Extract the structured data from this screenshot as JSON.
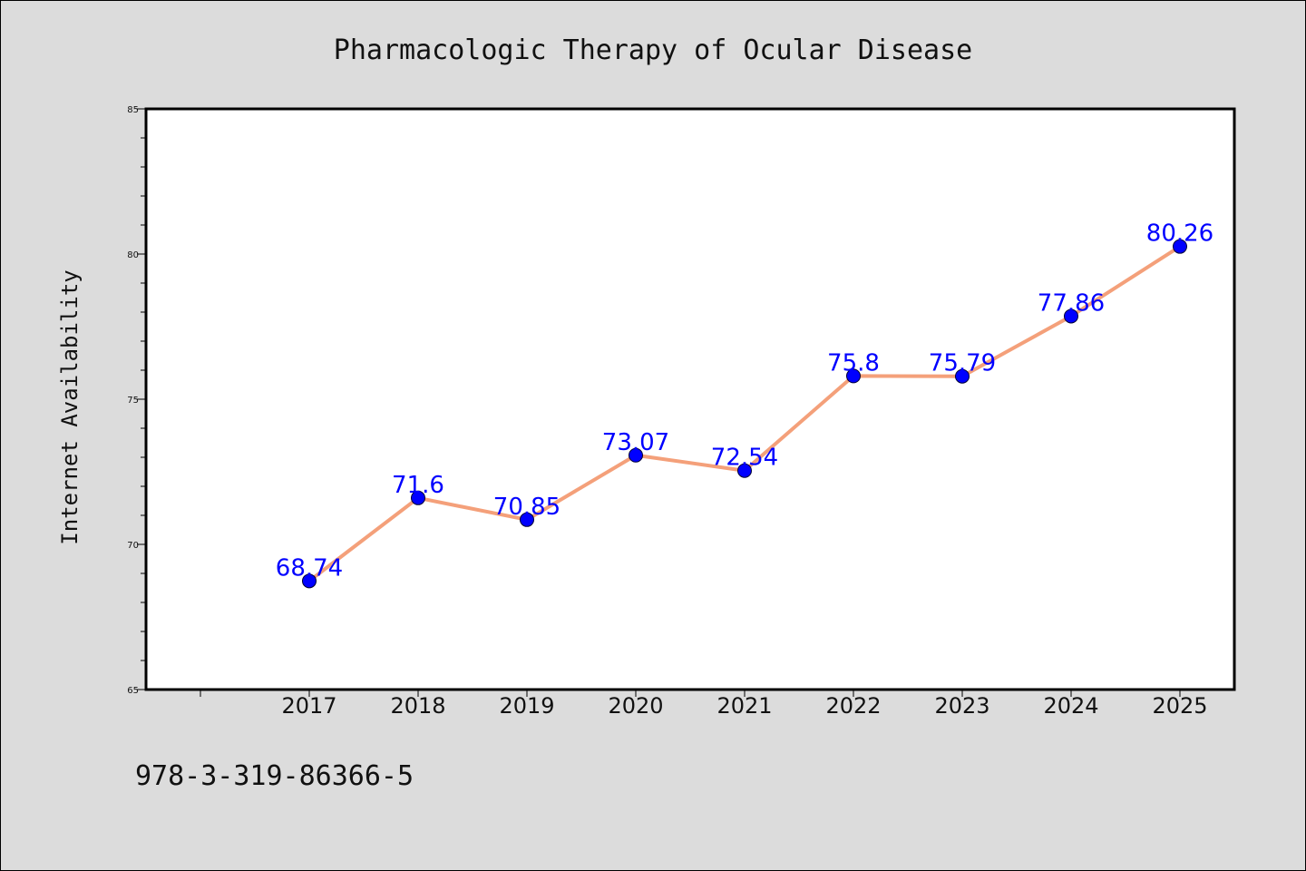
{
  "chart_data": {
    "type": "line",
    "title": "Pharmacologic Therapy of Ocular Disease",
    "xlabel": "",
    "ylabel": "Internet Availability",
    "categories": [
      "2017",
      "2018",
      "2019",
      "2020",
      "2021",
      "2022",
      "2023",
      "2024",
      "2025"
    ],
    "series": [
      {
        "values": [
          68.74,
          71.6,
          70.85,
          73.07,
          72.54,
          75.8,
          75.79,
          77.86,
          80.26
        ],
        "data_labels": [
          "68.74",
          "71.6",
          "70.85",
          "73.07",
          "72.54",
          "75.8",
          "75.79",
          "77.86",
          "80.26"
        ],
        "line_color": "#f4a07a",
        "marker_color": "#0000ff"
      }
    ],
    "ylim": [
      65,
      85
    ],
    "yticks": [
      "65",
      "70",
      "75",
      "80",
      "85"
    ],
    "grid": false,
    "legend": "none"
  },
  "footer": {
    "isbn": "978-3-319-86366-5"
  },
  "colors": {
    "background": "#dcdcdc",
    "plot_background": "#ffffff",
    "line": "#f4a07a",
    "marker": "#0000ff",
    "data_label": "#0000ff"
  }
}
